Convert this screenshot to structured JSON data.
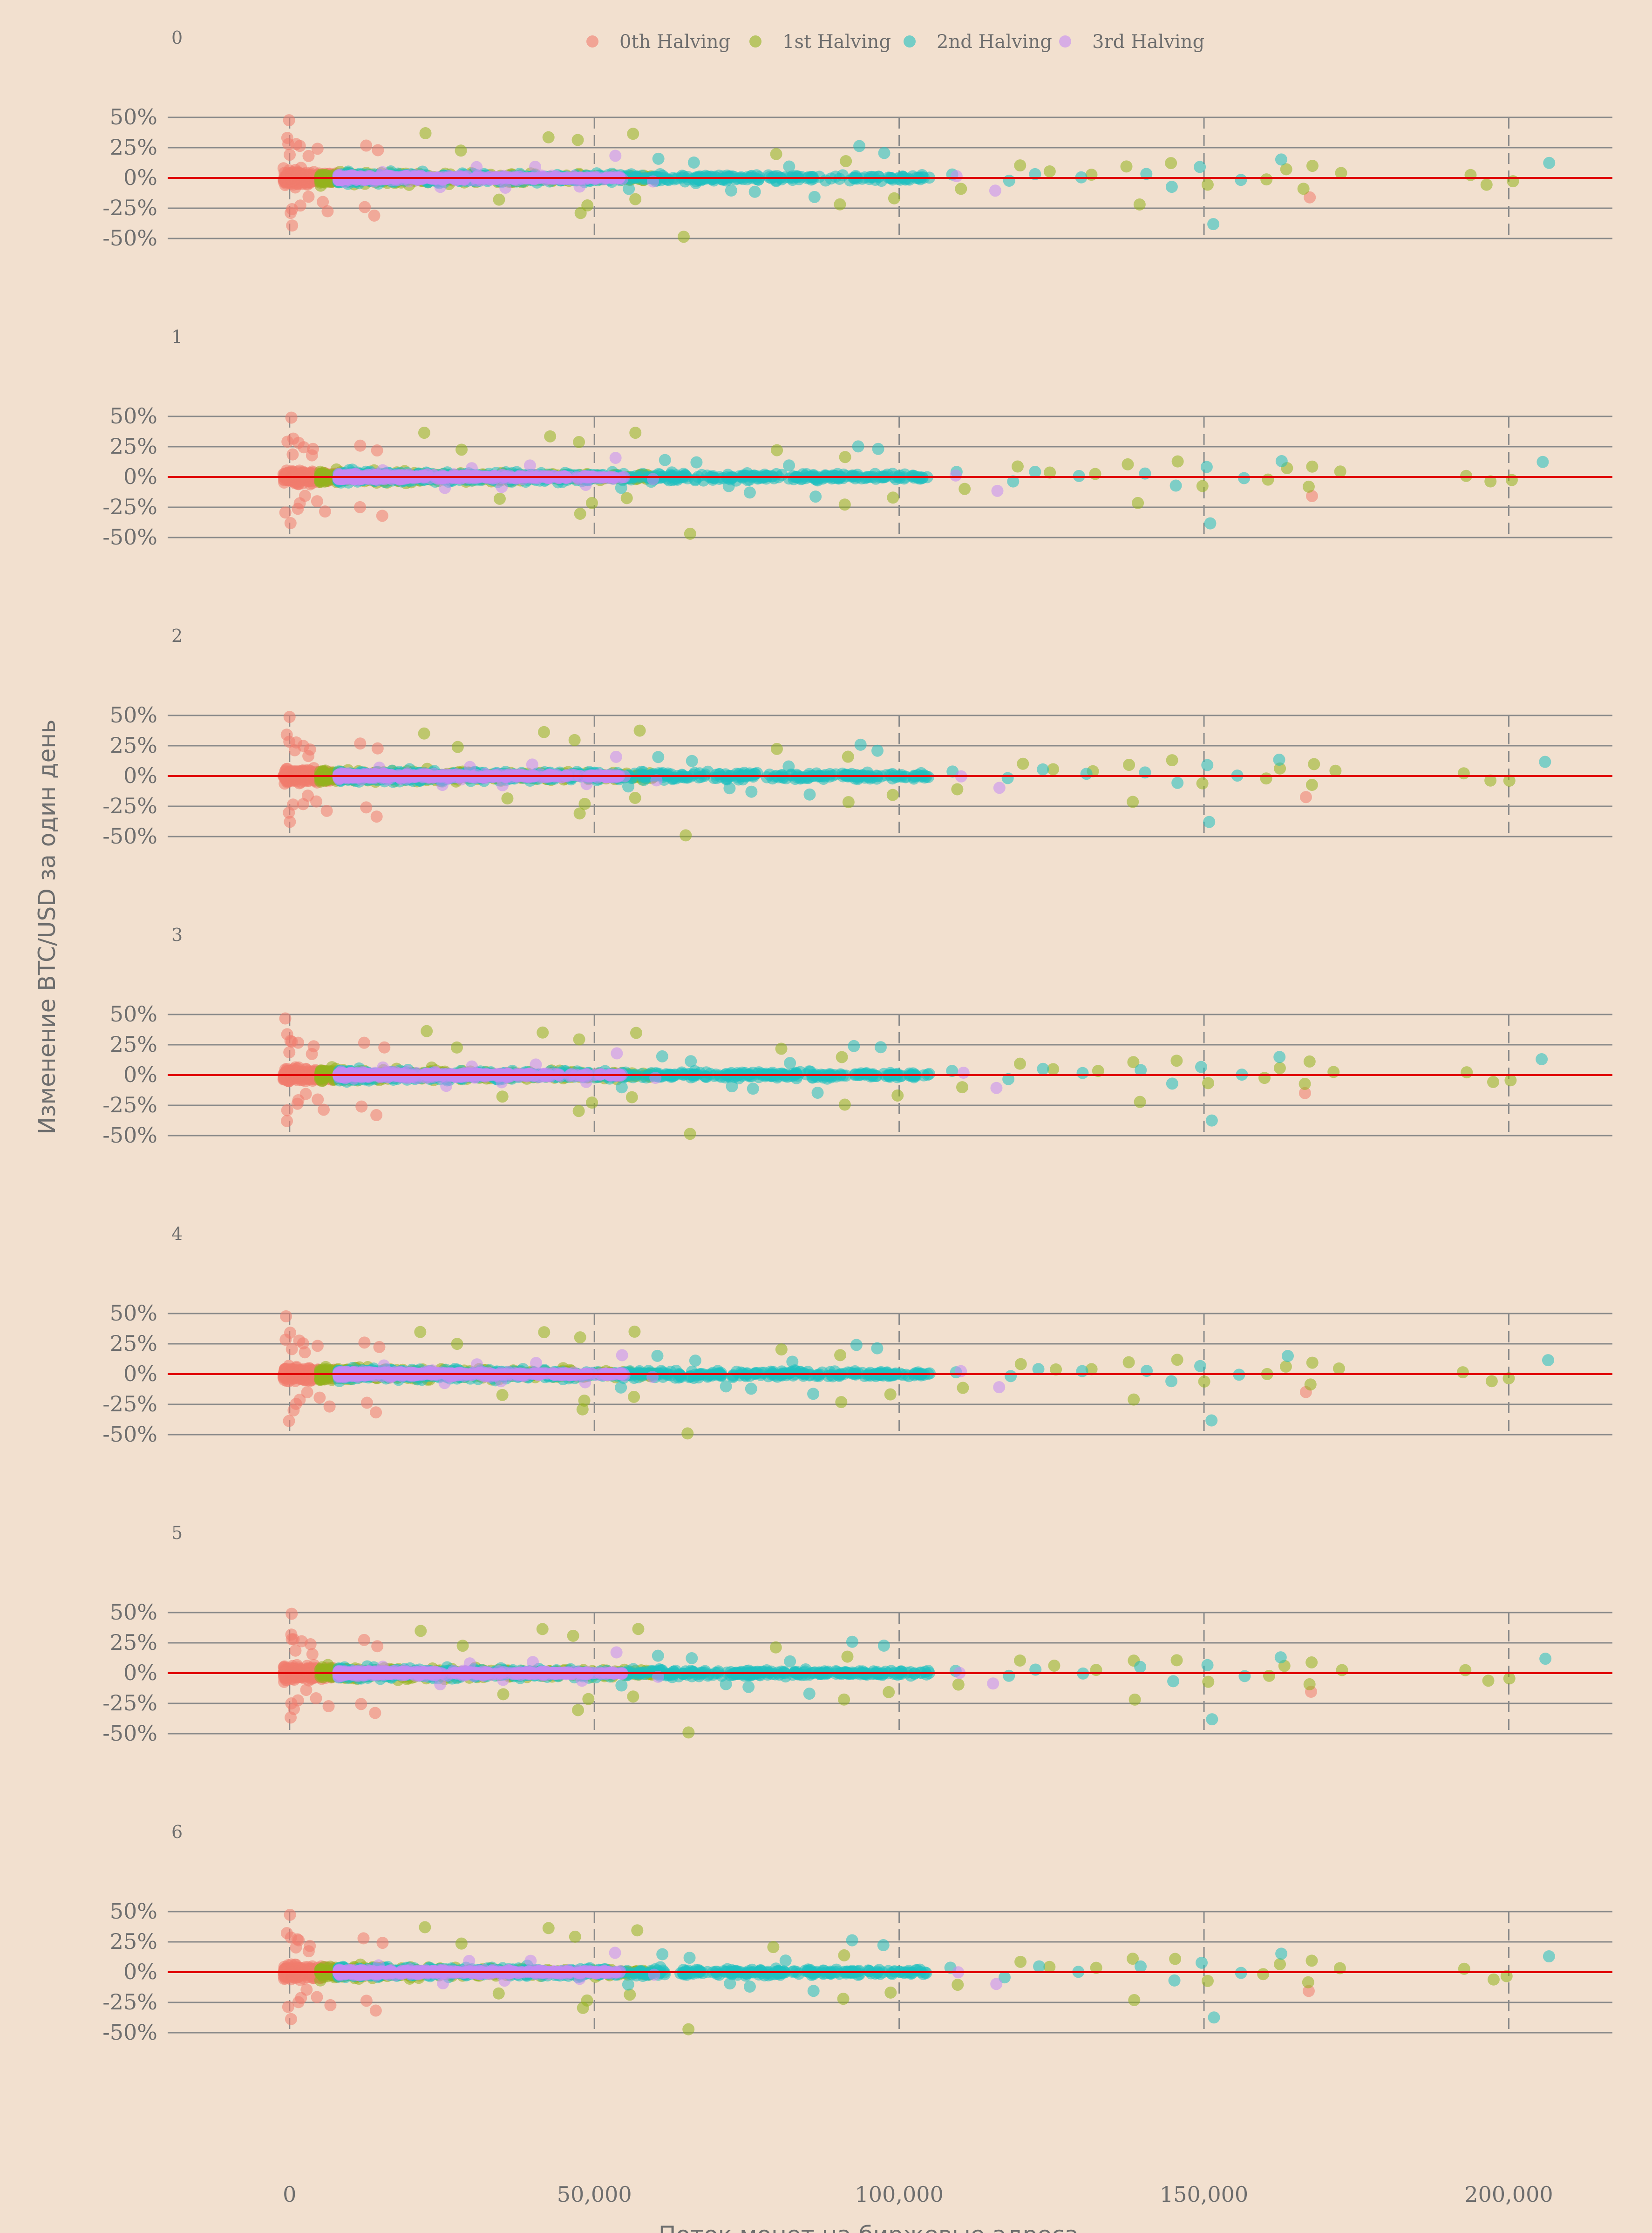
{
  "colors": {
    "background": "#f2e0cf",
    "grid": "#8a8a8a",
    "zero_line": "#e00000",
    "halving0": "#f07b6e",
    "halving1": "#93b21d",
    "halving2": "#1fc0c0",
    "halving3": "#c58af4"
  },
  "chart_data": {
    "type": "scatter",
    "layout": "facet-rows",
    "xlabel": "Поток монет на биржевые адреса",
    "ylabel": "Изменение BTC/USD за один день",
    "xlim": [
      -20000,
      217000
    ],
    "ylim": [
      -0.5,
      0.5
    ],
    "x_ticks": [
      0,
      50000,
      100000,
      150000,
      200000
    ],
    "x_tick_labels": [
      "0",
      "50,000",
      "100,000",
      "150,000",
      "200,000"
    ],
    "y_ticks": [
      0.5,
      0.25,
      0,
      -0.25,
      -0.5
    ],
    "y_tick_labels": [
      "50%",
      "25%",
      "0%",
      "-25%",
      "-50%"
    ],
    "panels": [
      "0",
      "1",
      "2",
      "3",
      "4",
      "5",
      "6"
    ],
    "legend_position": "top",
    "grid": true,
    "series": [
      {
        "name": "0th Halving",
        "color": "#f07b6e",
        "bulk": {
          "x_range": [
            -1000,
            9000
          ],
          "y_spread": 0.12
        },
        "points": [
          [
            0,
            0.48
          ],
          [
            0,
            0.33
          ],
          [
            0,
            0.28
          ],
          [
            1000,
            0.27
          ],
          [
            2000,
            0.26
          ],
          [
            4000,
            0.23
          ],
          [
            12000,
            0.27
          ],
          [
            15000,
            0.23
          ],
          [
            500,
            0.2
          ],
          [
            3000,
            0.17
          ],
          [
            0,
            -0.38
          ],
          [
            0,
            -0.3
          ],
          [
            1000,
            -0.25
          ],
          [
            2000,
            -0.22
          ],
          [
            5000,
            -0.2
          ],
          [
            12000,
            -0.25
          ],
          [
            14500,
            -0.32
          ],
          [
            6000,
            -0.28
          ],
          [
            3000,
            -0.15
          ],
          [
            167000,
            -0.16
          ]
        ]
      },
      {
        "name": "1st Halving",
        "color": "#93b21d",
        "bulk": {
          "x_range": [
            5000,
            60000
          ],
          "y_spread": 0.1
        },
        "points": [
          [
            22000,
            0.36
          ],
          [
            28000,
            0.24
          ],
          [
            42000,
            0.35
          ],
          [
            47000,
            0.3
          ],
          [
            57000,
            0.36
          ],
          [
            80000,
            0.21
          ],
          [
            91000,
            0.15
          ],
          [
            120000,
            0.09
          ],
          [
            138000,
            0.1
          ],
          [
            145000,
            0.12
          ],
          [
            163000,
            0.06
          ],
          [
            168000,
            0.1
          ],
          [
            172000,
            0.04
          ],
          [
            193000,
            0.02
          ],
          [
            197000,
            -0.05
          ],
          [
            200000,
            -0.04
          ],
          [
            167000,
            -0.08
          ],
          [
            139000,
            -0.22
          ],
          [
            91000,
            -0.23
          ],
          [
            99000,
            -0.16
          ],
          [
            48000,
            -0.3
          ],
          [
            65000,
            -0.48
          ],
          [
            49000,
            -0.22
          ],
          [
            35000,
            -0.18
          ],
          [
            56000,
            -0.18
          ],
          [
            110000,
            -0.1
          ],
          [
            125000,
            0.05
          ],
          [
            132000,
            0.04
          ],
          [
            150000,
            -0.06
          ],
          [
            160000,
            -0.01
          ]
        ]
      },
      {
        "name": "2nd Halving",
        "color": "#1fc0c0",
        "bulk": {
          "x_range": [
            8000,
            105000
          ],
          "y_spread": 0.09
        },
        "points": [
          [
            93000,
            0.25
          ],
          [
            97000,
            0.22
          ],
          [
            150000,
            0.08
          ],
          [
            163000,
            0.14
          ],
          [
            206000,
            0.12
          ],
          [
            156000,
            -0.01
          ],
          [
            151000,
            -0.38
          ],
          [
            86000,
            -0.16
          ],
          [
            76000,
            -0.12
          ],
          [
            61000,
            0.15
          ],
          [
            66000,
            0.12
          ],
          [
            130000,
            0.01
          ],
          [
            118000,
            -0.03
          ],
          [
            140000,
            0.04
          ],
          [
            145000,
            -0.07
          ],
          [
            82000,
            0.09
          ],
          [
            109000,
            0.03
          ],
          [
            123000,
            0.04
          ],
          [
            72000,
            -0.09
          ],
          [
            55000,
            -0.1
          ]
        ]
      },
      {
        "name": "3rd Halving",
        "color": "#c58af4",
        "bulk": {
          "x_range": [
            8000,
            55000
          ],
          "y_spread": 0.05
        },
        "points": [
          [
            54000,
            0.17
          ],
          [
            40000,
            0.1
          ],
          [
            30000,
            0.08
          ],
          [
            15000,
            0.06
          ],
          [
            25000,
            -0.08
          ],
          [
            48000,
            -0.06
          ],
          [
            116000,
            -0.1
          ],
          [
            110000,
            0.01
          ],
          [
            60000,
            -0.03
          ],
          [
            35000,
            -0.07
          ]
        ]
      }
    ]
  }
}
